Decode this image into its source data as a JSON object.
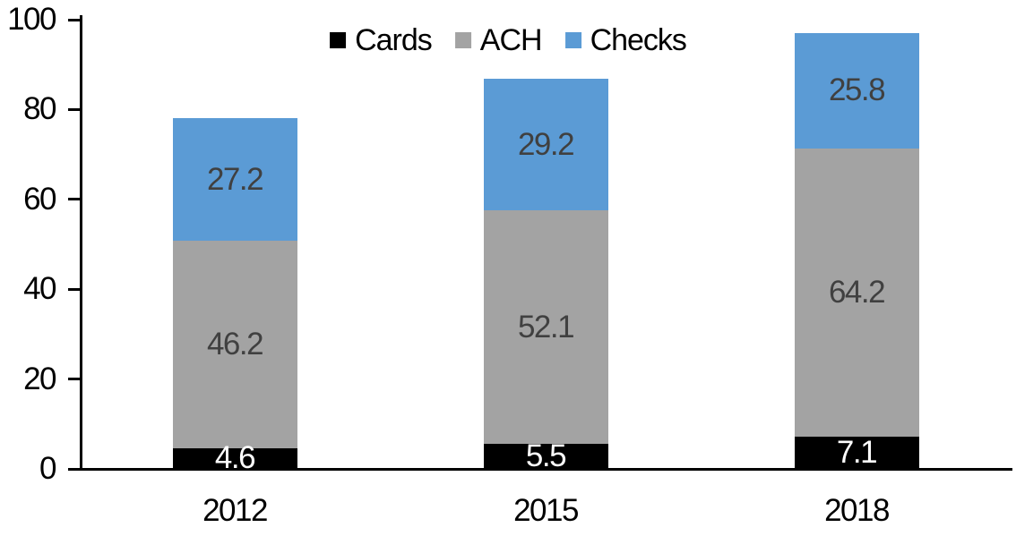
{
  "chart_data": {
    "type": "bar",
    "stacked": true,
    "title": "",
    "categories": [
      "2012",
      "2015",
      "2018"
    ],
    "series": [
      {
        "name": "Cards",
        "color": "#000000",
        "label_color": "#ffffff",
        "values": [
          4.6,
          5.5,
          7.1
        ]
      },
      {
        "name": "ACH",
        "color": "#a3a3a3",
        "label_color": "#404040",
        "values": [
          46.2,
          52.1,
          64.2
        ]
      },
      {
        "name": "Checks",
        "color": "#5b9bd5",
        "label_color": "#404040",
        "values": [
          27.2,
          29.2,
          25.8
        ]
      }
    ],
    "ylim": [
      0,
      100
    ],
    "yticks": [
      0,
      20,
      40,
      60,
      80,
      100
    ],
    "legend_position": "top",
    "grid": false,
    "value_labels": true,
    "axis_color": "#000000",
    "text_color": "#000000"
  }
}
